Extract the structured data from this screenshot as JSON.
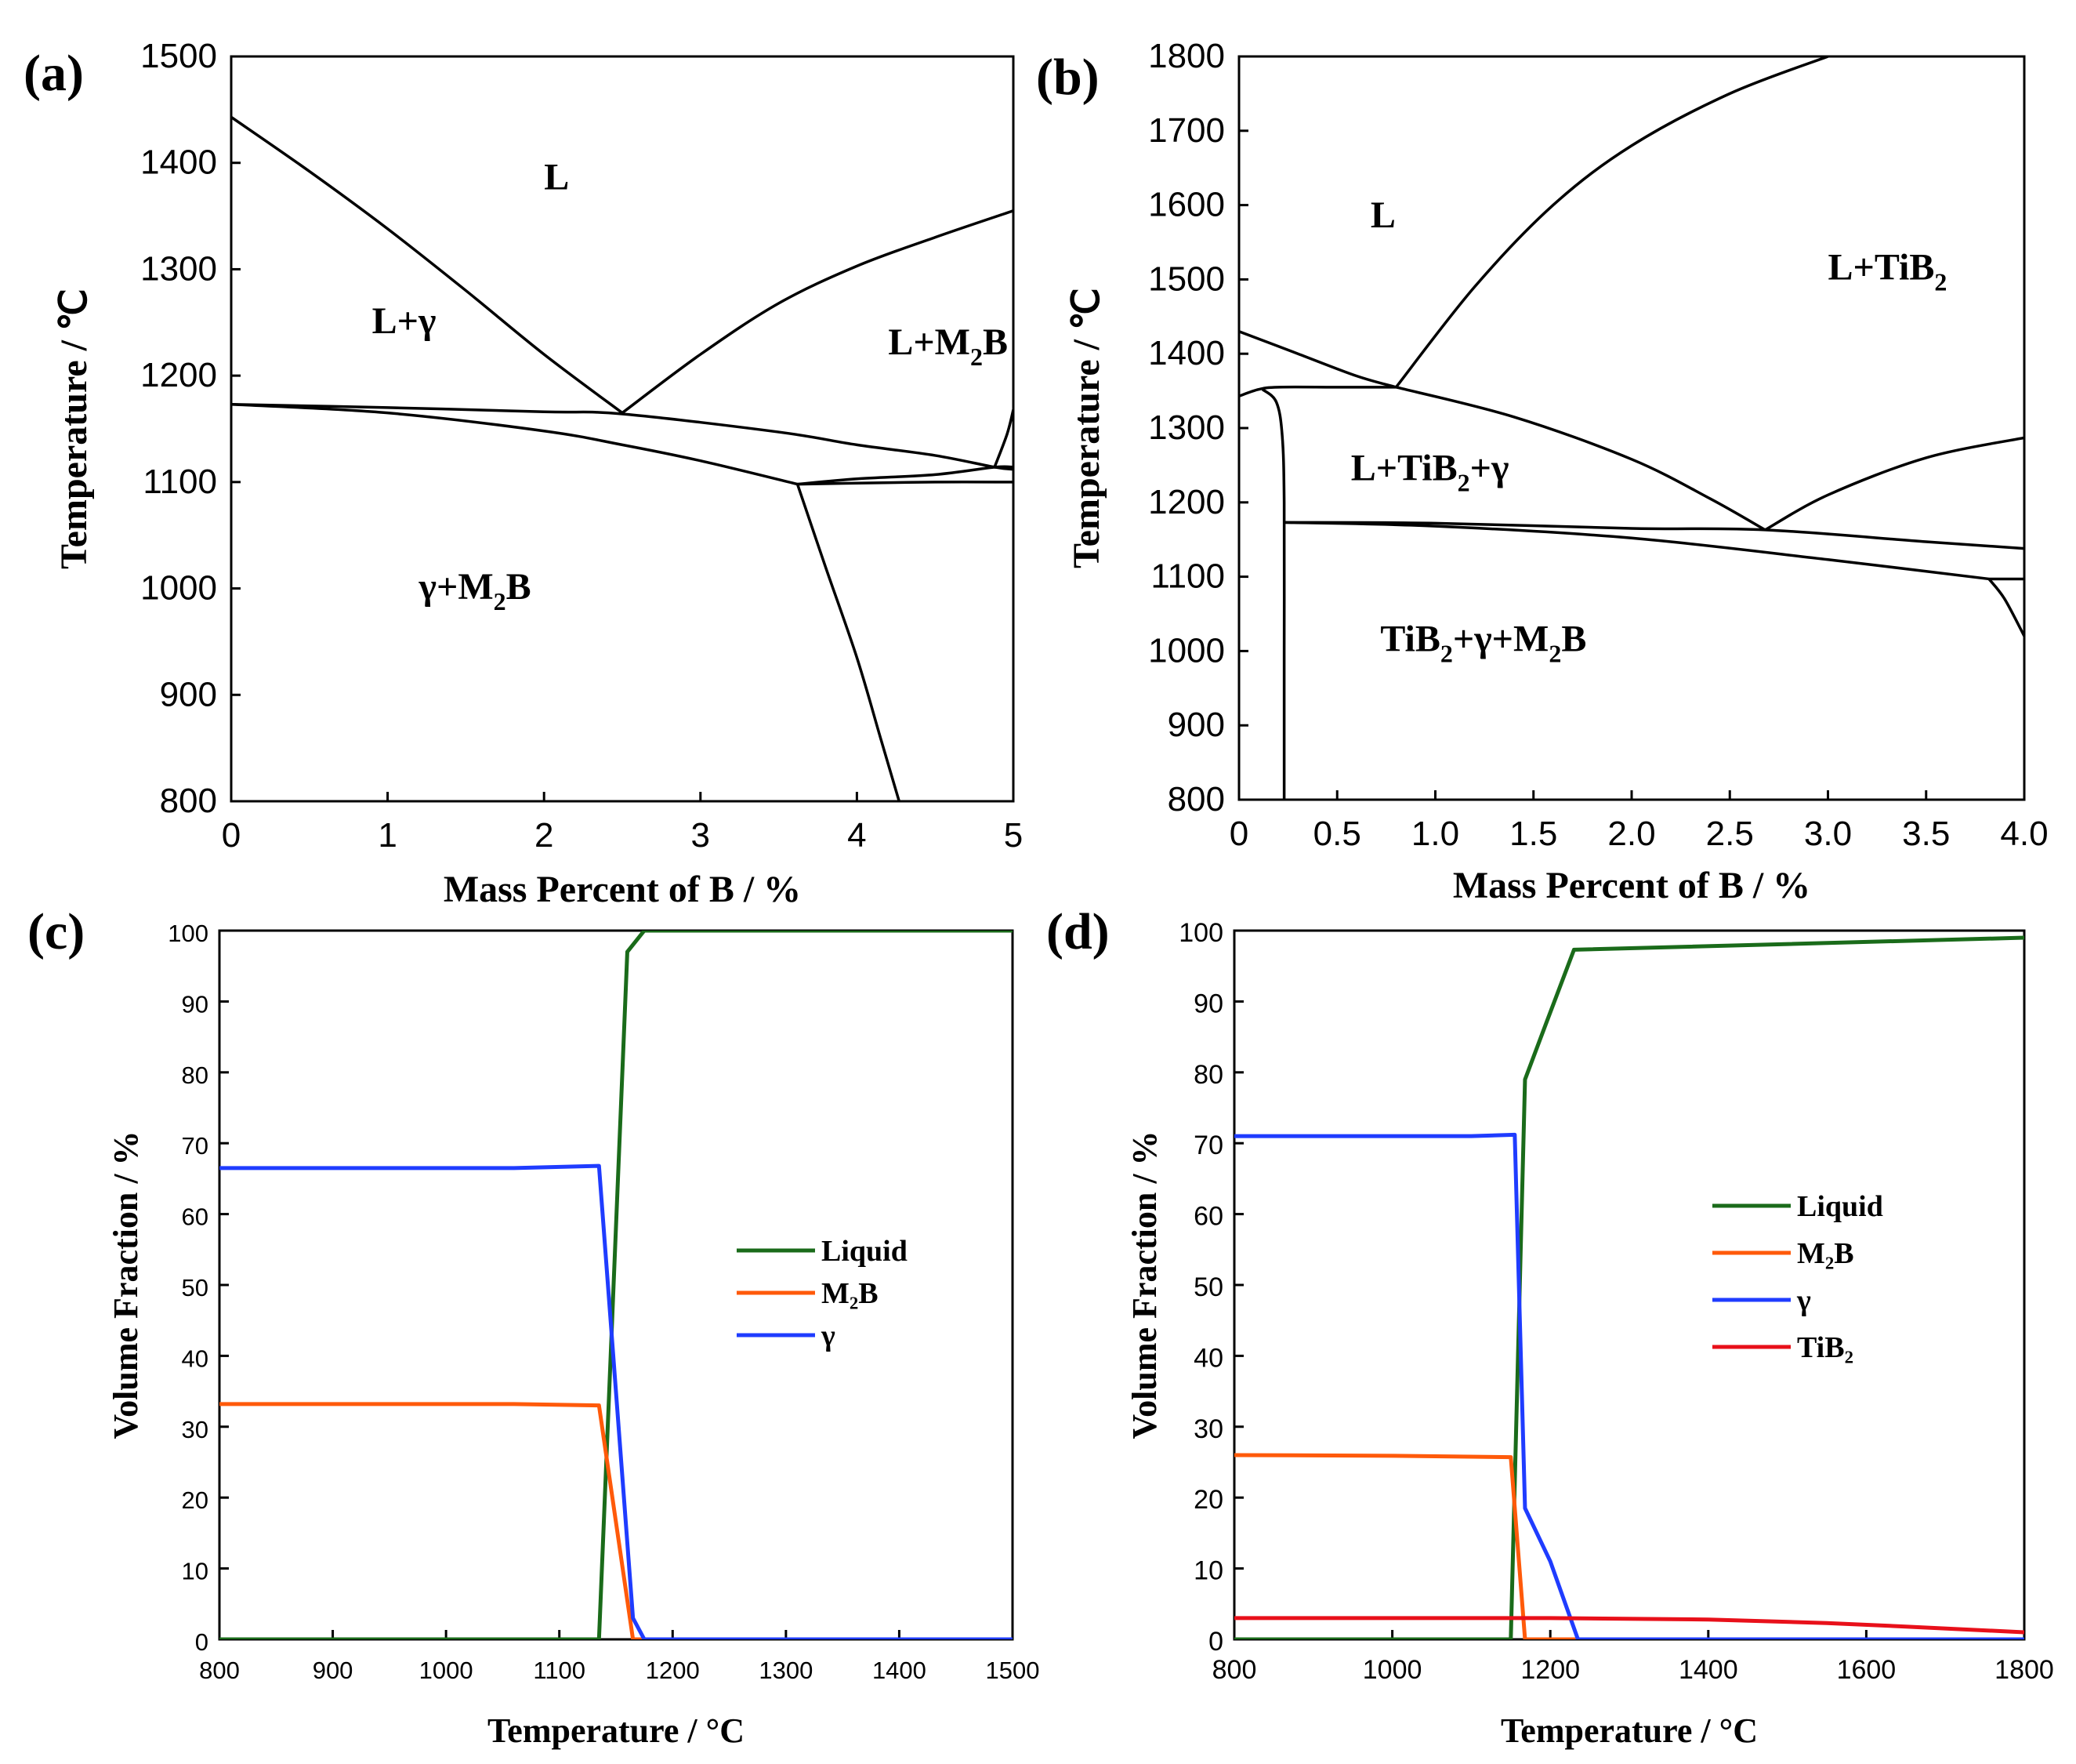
{
  "chart_data": [
    {
      "panel": "(a)",
      "type": "line",
      "title": "",
      "xlabel": "Mass Percent of B / %",
      "ylabel": "Temperature / ℃",
      "xlim": [
        0,
        5
      ],
      "ylim": [
        800,
        1500
      ],
      "xticks": [
        "0",
        "1",
        "2",
        "3",
        "4",
        "5"
      ],
      "yticks": [
        "800",
        "900",
        "1000",
        "1100",
        "1200",
        "1300",
        "1400",
        "1500"
      ],
      "regions": [
        {
          "text": "L",
          "x": 2.0,
          "y": 1375
        },
        {
          "text": "L+γ",
          "x": 0.9,
          "y": 1240
        },
        {
          "text": "L+M",
          "sub": "2",
          "tail": "B",
          "x": 4.2,
          "y": 1220
        },
        {
          "text": "γ+M",
          "sub": "2",
          "tail": "B",
          "x": 1.2,
          "y": 990
        }
      ],
      "series": [
        {
          "name": "liquidus-left",
          "points": [
            [
              0,
              1443
            ],
            [
              0.5,
              1392
            ],
            [
              1.0,
              1338
            ],
            [
              1.5,
              1280
            ],
            [
              2.0,
              1220
            ],
            [
              2.5,
              1165
            ]
          ]
        },
        {
          "name": "liquidus-right",
          "points": [
            [
              2.5,
              1165
            ],
            [
              3.0,
              1220
            ],
            [
              3.5,
              1268
            ],
            [
              4.0,
              1303
            ],
            [
              4.5,
              1330
            ],
            [
              5.0,
              1355
            ]
          ]
        },
        {
          "name": "eutectic-line",
          "points": [
            [
              0,
              1173
            ],
            [
              1.0,
              1170
            ],
            [
              2.0,
              1166
            ],
            [
              2.5,
              1164
            ],
            [
              3.5,
              1147
            ],
            [
              4.0,
              1135
            ],
            [
              4.5,
              1125
            ],
            [
              4.88,
              1114
            ],
            [
              5.0,
              1112
            ]
          ]
        },
        {
          "name": "solidus-gamma",
          "points": [
            [
              0,
              1173
            ],
            [
              1.0,
              1165
            ],
            [
              2.0,
              1148
            ],
            [
              2.5,
              1135
            ],
            [
              3.0,
              1120
            ],
            [
              3.62,
              1098
            ]
          ]
        },
        {
          "name": "three-phase-lower",
          "points": [
            [
              3.62,
              1098
            ],
            [
              4.0,
              1099
            ],
            [
              4.5,
              1100
            ],
            [
              5.0,
              1100
            ]
          ]
        },
        {
          "name": "three-phase-upper",
          "points": [
            [
              3.62,
              1098
            ],
            [
              4.0,
              1103
            ],
            [
              4.5,
              1107
            ],
            [
              4.88,
              1114
            ],
            [
              5.0,
              1114
            ]
          ]
        },
        {
          "name": "m2b-solvus",
          "points": [
            [
              3.62,
              1098
            ],
            [
              3.8,
              1020
            ],
            [
              4.0,
              935
            ],
            [
              4.15,
              860
            ],
            [
              4.27,
              800
            ]
          ]
        },
        {
          "name": "right-edge",
          "points": [
            [
              4.88,
              1114
            ],
            [
              4.96,
              1145
            ],
            [
              5.0,
              1168
            ]
          ]
        }
      ]
    },
    {
      "panel": "(b)",
      "type": "line",
      "title": "",
      "xlabel": "Mass Percent of B / %",
      "ylabel": "Temperature / ℃",
      "xlim": [
        0,
        4
      ],
      "ylim": [
        800,
        1800
      ],
      "xticks": [
        "0",
        "0.5",
        "1.0",
        "1.5",
        "2.0",
        "2.5",
        "3.0",
        "3.5",
        "4.0"
      ],
      "yticks": [
        "800",
        "900",
        "1000",
        "1100",
        "1200",
        "1300",
        "1400",
        "1500",
        "1600",
        "1700",
        "1800"
      ],
      "regions": [
        {
          "text": "L",
          "x": 0.67,
          "y": 1570
        },
        {
          "text": "L+TiB",
          "sub": "2",
          "tail": "",
          "x": 3.0,
          "y": 1500
        },
        {
          "text": "L+TiB",
          "sub": "2",
          "tail": "+γ",
          "x": 0.57,
          "y": 1230
        },
        {
          "text": "TiB",
          "sub": "2",
          "tail": "+γ+M",
          "sub2": "2",
          "tail2": "B",
          "x": 0.72,
          "y": 1000
        }
      ],
      "series": [
        {
          "name": "liquidus-gamma",
          "points": [
            [
              0,
              1430
            ],
            [
              0.3,
              1400
            ],
            [
              0.6,
              1370
            ],
            [
              0.8,
              1355
            ]
          ]
        },
        {
          "name": "liquidus-tib2",
          "points": [
            [
              0.8,
              1355
            ],
            [
              1.2,
              1490
            ],
            [
              1.6,
              1600
            ],
            [
              2.0,
              1680
            ],
            [
              2.5,
              1750
            ],
            [
              3.0,
              1800
            ]
          ]
        },
        {
          "name": "three-phase-top",
          "points": [
            [
              0,
              1343
            ],
            [
              0.1,
              1352
            ],
            [
              0.2,
              1355
            ],
            [
              0.5,
              1355
            ],
            [
              0.8,
              1355
            ]
          ]
        },
        {
          "name": "tib2-solvus",
          "points": [
            [
              0.12,
              1352
            ],
            [
              0.19,
              1335
            ],
            [
              0.22,
              1290
            ],
            [
              0.23,
              1200
            ],
            [
              0.23,
              1000
            ],
            [
              0.23,
              800
            ]
          ]
        },
        {
          "name": "m2b-liquidus-left",
          "points": [
            [
              0.8,
              1355
            ],
            [
              1.4,
              1315
            ],
            [
              2.0,
              1258
            ],
            [
              2.4,
              1205
            ],
            [
              2.68,
              1163
            ]
          ]
        },
        {
          "name": "m2b-liquidus-right",
          "points": [
            [
              2.68,
              1163
            ],
            [
              3.0,
              1210
            ],
            [
              3.5,
              1260
            ],
            [
              4.0,
              1287
            ]
          ]
        },
        {
          "name": "solidus-upper",
          "points": [
            [
              0.23,
              1173
            ],
            [
              1.0,
              1172
            ],
            [
              2.0,
              1165
            ],
            [
              2.68,
              1163
            ],
            [
              3.5,
              1147
            ],
            [
              4.0,
              1138
            ]
          ]
        },
        {
          "name": "solidus-lower",
          "points": [
            [
              0.23,
              1173
            ],
            [
              1.0,
              1168
            ],
            [
              2.0,
              1152
            ],
            [
              3.0,
              1123
            ],
            [
              3.82,
              1097
            ]
          ]
        },
        {
          "name": "right-horizontal",
          "points": [
            [
              3.82,
              1097
            ],
            [
              4.0,
              1097
            ]
          ]
        },
        {
          "name": "right-solvus",
          "points": [
            [
              3.82,
              1097
            ],
            [
              3.9,
              1070
            ],
            [
              4.0,
              1020
            ]
          ]
        }
      ]
    },
    {
      "panel": "(c)",
      "type": "line",
      "title": "",
      "xlabel": "Temperature / °C",
      "ylabel": "Volume Fraction / %",
      "xlim": [
        800,
        1500
      ],
      "ylim": [
        0,
        100
      ],
      "xticks": [
        "800",
        "900",
        "1000",
        "1100",
        "1200",
        "1300",
        "1400",
        "1500"
      ],
      "yticks": [
        "0",
        "10",
        "20",
        "30",
        "40",
        "50",
        "60",
        "70",
        "80",
        "90",
        "100"
      ],
      "legend": "center-right",
      "series": [
        {
          "name": "Liquid",
          "color": "#1a6b1a",
          "x": [
            800,
            1135,
            1160,
            1175,
            1500
          ],
          "y": [
            0,
            0,
            97,
            100,
            100
          ]
        },
        {
          "name": "M₂B",
          "color": "#ff5a0a",
          "x": [
            800,
            1060,
            1135,
            1165,
            1500
          ],
          "y": [
            33.2,
            33.2,
            33,
            0,
            0
          ]
        },
        {
          "name": "γ",
          "color": "#1f3cff",
          "x": [
            800,
            1060,
            1135,
            1165,
            1175,
            1500
          ],
          "y": [
            66.5,
            66.5,
            66.8,
            3,
            0,
            0
          ]
        }
      ]
    },
    {
      "panel": "(d)",
      "type": "line",
      "title": "",
      "xlabel": "Temperature / °C",
      "ylabel": "Volume Fraction / %",
      "xlim": [
        800,
        1800
      ],
      "ylim": [
        0,
        100
      ],
      "xticks": [
        "800",
        "1000",
        "1200",
        "1400",
        "1600",
        "1800"
      ],
      "yticks": [
        "0",
        "10",
        "20",
        "30",
        "40",
        "50",
        "60",
        "70",
        "80",
        "90",
        "100"
      ],
      "legend": "center-right",
      "series": [
        {
          "name": "Liquid",
          "color": "#1a6b1a",
          "x": [
            800,
            1150,
            1168,
            1195,
            1230,
            1800
          ],
          "y": [
            0,
            0,
            79,
            87,
            97.3,
            99
          ]
        },
        {
          "name": "M₂B",
          "color": "#ff5a0a",
          "x": [
            800,
            1000,
            1150,
            1168,
            1800
          ],
          "y": [
            26,
            25.9,
            25.7,
            0,
            0
          ]
        },
        {
          "name": "γ",
          "color": "#1f3cff",
          "x": [
            800,
            1100,
            1155,
            1168,
            1200,
            1235,
            1800
          ],
          "y": [
            71,
            71,
            71.2,
            18.5,
            11,
            0,
            0
          ]
        },
        {
          "name": "TiB₂",
          "color": "#e8101a",
          "x": [
            800,
            1200,
            1400,
            1550,
            1650,
            1800
          ],
          "y": [
            3,
            3,
            2.8,
            2.3,
            1.8,
            1
          ]
        }
      ]
    }
  ]
}
